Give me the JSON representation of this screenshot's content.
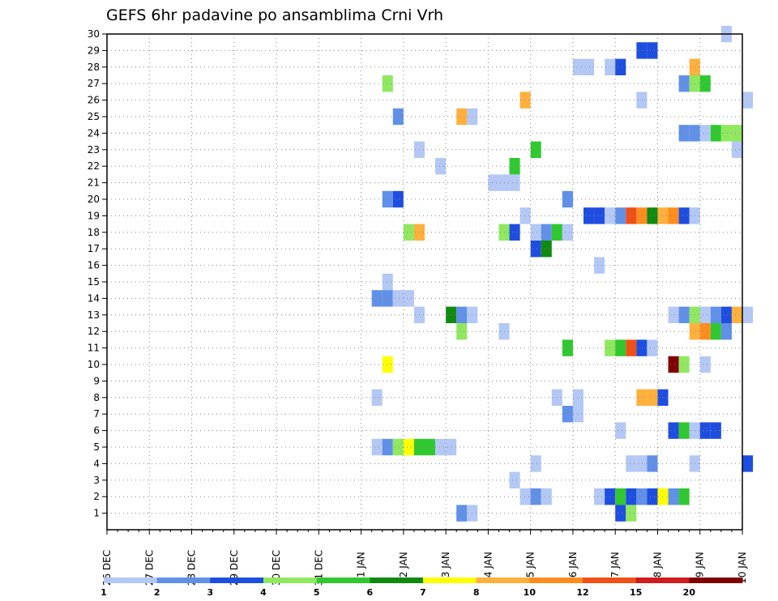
{
  "chart_data": {
    "type": "heatmap",
    "title": "GEFS 6hr padavine po ansamblima Crni Vrh",
    "x_tick_labels": [
      "26 DEC",
      "27 DEC",
      "28 DEC",
      "29 DEC",
      "30 DEC",
      "31 DEC",
      "01 JAN",
      "02 JAN",
      "03 JAN",
      "04 JAN",
      "05 JAN",
      "06 JAN",
      "07 JAN",
      "08 JAN",
      "09 JAN",
      "10 JAN"
    ],
    "y_tick_labels": [
      "1",
      "2",
      "3",
      "4",
      "5",
      "6",
      "7",
      "8",
      "9",
      "10",
      "11",
      "12",
      "13",
      "14",
      "15",
      "16",
      "17",
      "18",
      "19",
      "20",
      "21",
      "22",
      "23",
      "24",
      "25",
      "26",
      "27",
      "28",
      "29",
      "30"
    ],
    "x_unit": "6-hour step from 26 DEC 00Z",
    "ylim": [
      0,
      30
    ],
    "grid": true,
    "legend": {
      "position": "bottom",
      "labels": [
        "1",
        "2",
        "3",
        "4",
        "5",
        "6",
        "7",
        "8",
        "10",
        "12",
        "15",
        "20"
      ],
      "colors": [
        "#b4c8f5",
        "#6090e8",
        "#1e4ee0",
        "#90e860",
        "#30c830",
        "#108a10",
        "#ffff00",
        "#ffb03c",
        "#ff8c1e",
        "#f05018",
        "#d01c1c",
        "#800000"
      ]
    },
    "cells": [
      {
        "member": 30,
        "step": 58,
        "level": 0
      },
      {
        "member": 29,
        "step": 50,
        "level": 2
      },
      {
        "member": 29,
        "step": 51,
        "level": 2
      },
      {
        "member": 28,
        "step": 44,
        "level": 0
      },
      {
        "member": 28,
        "step": 45,
        "level": 0
      },
      {
        "member": 28,
        "step": 47,
        "level": 0
      },
      {
        "member": 28,
        "step": 48,
        "level": 2
      },
      {
        "member": 28,
        "step": 55,
        "level": 7
      },
      {
        "member": 27,
        "step": 26,
        "level": 3
      },
      {
        "member": 27,
        "step": 54,
        "level": 1
      },
      {
        "member": 27,
        "step": 55,
        "level": 3
      },
      {
        "member": 27,
        "step": 56,
        "level": 4
      },
      {
        "member": 26,
        "step": 39,
        "level": 7
      },
      {
        "member": 26,
        "step": 50,
        "level": 0
      },
      {
        "member": 26,
        "step": 60,
        "level": 0
      },
      {
        "member": 25,
        "step": 27,
        "level": 1
      },
      {
        "member": 25,
        "step": 33,
        "level": 7
      },
      {
        "member": 25,
        "step": 34,
        "level": 0
      },
      {
        "member": 24,
        "step": 54,
        "level": 1
      },
      {
        "member": 24,
        "step": 55,
        "level": 1
      },
      {
        "member": 24,
        "step": 56,
        "level": 0
      },
      {
        "member": 24,
        "step": 57,
        "level": 4
      },
      {
        "member": 24,
        "step": 58,
        "level": 3
      },
      {
        "member": 24,
        "step": 59,
        "level": 3
      },
      {
        "member": 23,
        "step": 29,
        "level": 0
      },
      {
        "member": 23,
        "step": 40,
        "level": 4
      },
      {
        "member": 23,
        "step": 59,
        "level": 0
      },
      {
        "member": 22,
        "step": 31,
        "level": 0
      },
      {
        "member": 22,
        "step": 38,
        "level": 4
      },
      {
        "member": 21,
        "step": 36,
        "level": 0
      },
      {
        "member": 21,
        "step": 37,
        "level": 0
      },
      {
        "member": 21,
        "step": 38,
        "level": 0
      },
      {
        "member": 20,
        "step": 26,
        "level": 1
      },
      {
        "member": 20,
        "step": 27,
        "level": 2
      },
      {
        "member": 20,
        "step": 43,
        "level": 1
      },
      {
        "member": 19,
        "step": 39,
        "level": 0
      },
      {
        "member": 19,
        "step": 45,
        "level": 2
      },
      {
        "member": 19,
        "step": 46,
        "level": 2
      },
      {
        "member": 19,
        "step": 47,
        "level": 0
      },
      {
        "member": 19,
        "step": 48,
        "level": 1
      },
      {
        "member": 19,
        "step": 49,
        "level": 9
      },
      {
        "member": 19,
        "step": 50,
        "level": 8
      },
      {
        "member": 19,
        "step": 51,
        "level": 5
      },
      {
        "member": 19,
        "step": 52,
        "level": 7
      },
      {
        "member": 19,
        "step": 53,
        "level": 8
      },
      {
        "member": 19,
        "step": 54,
        "level": 2
      },
      {
        "member": 19,
        "step": 55,
        "level": 0
      },
      {
        "member": 18,
        "step": 28,
        "level": 3
      },
      {
        "member": 18,
        "step": 29,
        "level": 7
      },
      {
        "member": 18,
        "step": 37,
        "level": 3
      },
      {
        "member": 18,
        "step": 38,
        "level": 2
      },
      {
        "member": 18,
        "step": 40,
        "level": 0
      },
      {
        "member": 18,
        "step": 41,
        "level": 1
      },
      {
        "member": 18,
        "step": 42,
        "level": 4
      },
      {
        "member": 18,
        "step": 43,
        "level": 0
      },
      {
        "member": 17,
        "step": 40,
        "level": 2
      },
      {
        "member": 17,
        "step": 41,
        "level": 5
      },
      {
        "member": 16,
        "step": 46,
        "level": 0
      },
      {
        "member": 15,
        "step": 26,
        "level": 0
      },
      {
        "member": 14,
        "step": 25,
        "level": 1
      },
      {
        "member": 14,
        "step": 26,
        "level": 1
      },
      {
        "member": 14,
        "step": 27,
        "level": 0
      },
      {
        "member": 14,
        "step": 28,
        "level": 0
      },
      {
        "member": 13,
        "step": 29,
        "level": 0
      },
      {
        "member": 13,
        "step": 32,
        "level": 5
      },
      {
        "member": 13,
        "step": 33,
        "level": 1
      },
      {
        "member": 13,
        "step": 34,
        "level": 0
      },
      {
        "member": 13,
        "step": 53,
        "level": 0
      },
      {
        "member": 13,
        "step": 54,
        "level": 1
      },
      {
        "member": 13,
        "step": 55,
        "level": 3
      },
      {
        "member": 13,
        "step": 56,
        "level": 0
      },
      {
        "member": 13,
        "step": 57,
        "level": 1
      },
      {
        "member": 13,
        "step": 58,
        "level": 2
      },
      {
        "member": 13,
        "step": 59,
        "level": 7
      },
      {
        "member": 13,
        "step": 60,
        "level": 0
      },
      {
        "member": 12,
        "step": 33,
        "level": 3
      },
      {
        "member": 12,
        "step": 37,
        "level": 0
      },
      {
        "member": 12,
        "step": 55,
        "level": 7
      },
      {
        "member": 12,
        "step": 56,
        "level": 8
      },
      {
        "member": 12,
        "step": 57,
        "level": 4
      },
      {
        "member": 12,
        "step": 58,
        "level": 1
      },
      {
        "member": 11,
        "step": 43,
        "level": 4
      },
      {
        "member": 11,
        "step": 47,
        "level": 3
      },
      {
        "member": 11,
        "step": 48,
        "level": 4
      },
      {
        "member": 11,
        "step": 49,
        "level": 9
      },
      {
        "member": 11,
        "step": 50,
        "level": 2
      },
      {
        "member": 11,
        "step": 51,
        "level": 0
      },
      {
        "member": 10,
        "step": 26,
        "level": 6
      },
      {
        "member": 10,
        "step": 53,
        "level": 11
      },
      {
        "member": 10,
        "step": 54,
        "level": 3
      },
      {
        "member": 10,
        "step": 56,
        "level": 0
      },
      {
        "member": 8,
        "step": 25,
        "level": 0
      },
      {
        "member": 8,
        "step": 42,
        "level": 0
      },
      {
        "member": 8,
        "step": 44,
        "level": 0
      },
      {
        "member": 8,
        "step": 50,
        "level": 7
      },
      {
        "member": 8,
        "step": 51,
        "level": 7
      },
      {
        "member": 8,
        "step": 52,
        "level": 2
      },
      {
        "member": 7,
        "step": 43,
        "level": 1
      },
      {
        "member": 7,
        "step": 44,
        "level": 0
      },
      {
        "member": 6,
        "step": 48,
        "level": 0
      },
      {
        "member": 6,
        "step": 53,
        "level": 2
      },
      {
        "member": 6,
        "step": 54,
        "level": 4
      },
      {
        "member": 6,
        "step": 55,
        "level": 0
      },
      {
        "member": 6,
        "step": 56,
        "level": 2
      },
      {
        "member": 6,
        "step": 57,
        "level": 2
      },
      {
        "member": 5,
        "step": 25,
        "level": 0
      },
      {
        "member": 5,
        "step": 26,
        "level": 1
      },
      {
        "member": 5,
        "step": 27,
        "level": 3
      },
      {
        "member": 5,
        "step": 28,
        "level": 6
      },
      {
        "member": 5,
        "step": 29,
        "level": 4
      },
      {
        "member": 5,
        "step": 30,
        "level": 4
      },
      {
        "member": 5,
        "step": 31,
        "level": 0
      },
      {
        "member": 5,
        "step": 32,
        "level": 0
      },
      {
        "member": 4,
        "step": 40,
        "level": 0
      },
      {
        "member": 4,
        "step": 49,
        "level": 0
      },
      {
        "member": 4,
        "step": 50,
        "level": 0
      },
      {
        "member": 4,
        "step": 51,
        "level": 1
      },
      {
        "member": 4,
        "step": 55,
        "level": 0
      },
      {
        "member": 4,
        "step": 60,
        "level": 2
      },
      {
        "member": 3,
        "step": 38,
        "level": 0
      },
      {
        "member": 2,
        "step": 39,
        "level": 0
      },
      {
        "member": 2,
        "step": 40,
        "level": 1
      },
      {
        "member": 2,
        "step": 41,
        "level": 0
      },
      {
        "member": 2,
        "step": 46,
        "level": 0
      },
      {
        "member": 2,
        "step": 47,
        "level": 2
      },
      {
        "member": 2,
        "step": 48,
        "level": 4
      },
      {
        "member": 2,
        "step": 49,
        "level": 2
      },
      {
        "member": 2,
        "step": 50,
        "level": 1
      },
      {
        "member": 2,
        "step": 51,
        "level": 2
      },
      {
        "member": 2,
        "step": 52,
        "level": 6
      },
      {
        "member": 2,
        "step": 53,
        "level": 1
      },
      {
        "member": 2,
        "step": 54,
        "level": 4
      },
      {
        "member": 1,
        "step": 33,
        "level": 1
      },
      {
        "member": 1,
        "step": 34,
        "level": 0
      },
      {
        "member": 1,
        "step": 48,
        "level": 2
      },
      {
        "member": 1,
        "step": 49,
        "level": 3
      }
    ]
  }
}
